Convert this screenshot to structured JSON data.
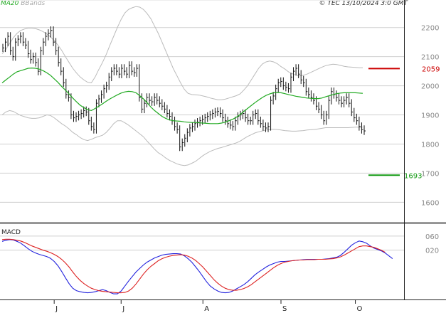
{
  "header": {
    "ma_label": "MA20",
    "bb_label": "BBands",
    "copyright": "© TEC 13/10/2024 3:0 GMT"
  },
  "colors": {
    "ma": "#22aa22",
    "bands": "#bbbbbb",
    "price": "#111111",
    "resistance": "#cc0000",
    "support": "#119911",
    "macd": "#2222dd",
    "signal": "#dd2222",
    "grid": "#cfcfcf",
    "axis_text": "#888888"
  },
  "chart_data": [
    {
      "type": "line",
      "panel": "price",
      "y_ticks": [
        1600,
        1700,
        1800,
        1900,
        2000,
        2100,
        2200
      ],
      "ylim": [
        1530,
        2275
      ],
      "x_ticks": [
        "J",
        "J",
        "A",
        "S",
        "O"
      ],
      "x_tick_bars": [
        14,
        32,
        54,
        75,
        95
      ],
      "series": [
        {
          "name": "MA20",
          "values": [
            2010,
            2020,
            2030,
            2040,
            2048,
            2052,
            2056,
            2060,
            2061,
            2060,
            2057,
            2052,
            2045,
            2036,
            2024,
            2012,
            1998,
            1985,
            1972,
            1958,
            1945,
            1933,
            1925,
            1918,
            1915,
            1922,
            1930,
            1938,
            1947,
            1955,
            1962,
            1969,
            1975,
            1979,
            1981,
            1980,
            1976,
            1966,
            1955,
            1942,
            1927,
            1915,
            1905,
            1895,
            1888,
            1883,
            1880,
            1879,
            1878,
            1876,
            1875,
            1874,
            1874,
            1873,
            1872,
            1871,
            1870,
            1870,
            1870,
            1872,
            1875,
            1880,
            1885,
            1892,
            1901,
            1912,
            1922,
            1932,
            1942,
            1951,
            1960,
            1967,
            1972,
            1976,
            1977,
            1976,
            1973,
            1970,
            1967,
            1964,
            1962,
            1960,
            1958,
            1957,
            1956,
            1956,
            1958,
            1962,
            1966,
            1970,
            1973,
            1975,
            1976,
            1976,
            1976,
            1976,
            1975,
            1974
          ]
        },
        {
          "name": "BBands upper",
          "values": [
            2110,
            2125,
            2145,
            2165,
            2180,
            2190,
            2195,
            2198,
            2198,
            2196,
            2192,
            2186,
            2178,
            2168,
            2155,
            2140,
            2122,
            2100,
            2080,
            2060,
            2044,
            2030,
            2020,
            2012,
            2010,
            2030,
            2056,
            2080,
            2108,
            2140,
            2170,
            2200,
            2228,
            2250,
            2262,
            2268,
            2272,
            2270,
            2262,
            2248,
            2230,
            2205,
            2180,
            2150,
            2120,
            2090,
            2060,
            2035,
            2010,
            1988,
            1974,
            1970,
            1969,
            1968,
            1965,
            1962,
            1958,
            1955,
            1952,
            1952,
            1954,
            1958,
            1962,
            1966,
            1972,
            1985,
            2000,
            2020,
            2040,
            2060,
            2075,
            2082,
            2085,
            2082,
            2076,
            2066,
            2058,
            2048,
            2042,
            2036,
            2034,
            2036,
            2040,
            2046,
            2052,
            2058,
            2064,
            2069,
            2072,
            2074,
            2073,
            2070,
            2067,
            2065,
            2064,
            2063,
            2062,
            2062
          ]
        },
        {
          "name": "BBands lower",
          "values": [
            1900,
            1910,
            1915,
            1912,
            1905,
            1898,
            1894,
            1890,
            1888,
            1888,
            1890,
            1895,
            1900,
            1898,
            1890,
            1880,
            1870,
            1862,
            1852,
            1840,
            1832,
            1822,
            1815,
            1812,
            1816,
            1822,
            1826,
            1830,
            1840,
            1854,
            1870,
            1880,
            1880,
            1873,
            1865,
            1855,
            1845,
            1835,
            1825,
            1810,
            1796,
            1782,
            1770,
            1762,
            1752,
            1744,
            1738,
            1732,
            1728,
            1726,
            1728,
            1734,
            1740,
            1750,
            1760,
            1768,
            1775,
            1780,
            1785,
            1788,
            1792,
            1796,
            1800,
            1804,
            1810,
            1818,
            1826,
            1832,
            1838,
            1842,
            1845,
            1848,
            1850,
            1851,
            1850,
            1848,
            1846,
            1845,
            1844,
            1844,
            1845,
            1846,
            1848,
            1849,
            1850,
            1852,
            1854,
            1856,
            1856,
            1856,
            1856,
            1856,
            1856,
            1856,
            1857,
            1858,
            1858,
            1858
          ]
        },
        {
          "name": "Price",
          "style": "hlc-bars",
          "values": [
            2130,
            2150,
            2170,
            2120,
            2100,
            2150,
            2160,
            2170,
            2150,
            2140,
            2110,
            2090,
            2100,
            2080,
            2050,
            2120,
            2150,
            2170,
            2180,
            2190,
            2150,
            2120,
            2080,
            2050,
            2010,
            1970,
            1960,
            1900,
            1890,
            1895,
            1900,
            1905,
            1915,
            1910,
            1880,
            1860,
            1850,
            1940,
            1955,
            1970,
            1990,
            2000,
            2030,
            2050,
            2060,
            2050,
            2040,
            2060,
            2050,
            2040,
            2070,
            2050,
            2045,
            2060,
            1960,
            1920,
            1940,
            1960,
            1950,
            1945,
            1960,
            1950,
            1940,
            1930,
            1920,
            1905,
            1895,
            1880,
            1860,
            1850,
            1790,
            1805,
            1820,
            1840,
            1855,
            1860,
            1870,
            1875,
            1880,
            1885,
            1890,
            1895,
            1900,
            1905,
            1910,
            1912,
            1905,
            1890,
            1880,
            1870,
            1865,
            1860,
            1880,
            1895,
            1900,
            1905,
            1890,
            1880,
            1880,
            1900,
            1905,
            1880,
            1870,
            1860,
            1855,
            1860,
            1950,
            1965,
            1990,
            2010,
            2015,
            2000,
            1995,
            1990,
            2030,
            2050,
            2060,
            2040,
            2020,
            2010,
            1980,
            1970,
            1960,
            1950,
            1930,
            1920,
            1900,
            1880,
            1900,
            1950,
            1980,
            1970,
            1960,
            1950,
            1940,
            1950,
            1960,
            1940,
            1910,
            1890,
            1880,
            1860,
            1850,
            1845
          ]
        }
      ],
      "support": {
        "value": 1693,
        "label": "1693"
      },
      "resistance": {
        "value": 2059,
        "label": "2059"
      }
    },
    {
      "type": "line",
      "panel": "indicator",
      "title": "MACD",
      "y_ticks": [
        20,
        60
      ],
      "y_tick_labels": [
        "020",
        "060"
      ],
      "ylim": [
        -120,
        90
      ],
      "series": [
        {
          "name": "MACD",
          "values": [
            45,
            48,
            50,
            49,
            45,
            40,
            32,
            24,
            17,
            12,
            8,
            5,
            2,
            -3,
            -12,
            -24,
            -40,
            -58,
            -75,
            -88,
            -95,
            -98,
            -100,
            -101,
            -100,
            -98,
            -95,
            -92,
            -95,
            -100,
            -104,
            -104,
            -96,
            -82,
            -68,
            -55,
            -42,
            -32,
            -22,
            -14,
            -8,
            -2,
            2,
            6,
            8,
            9,
            10,
            10,
            9,
            4,
            -4,
            -14,
            -27,
            -40,
            -55,
            -70,
            -82,
            -90,
            -96,
            -100,
            -101,
            -100,
            -96,
            -90,
            -84,
            -78,
            -70,
            -60,
            -50,
            -42,
            -35,
            -28,
            -22,
            -18,
            -14,
            -12,
            -12,
            -11,
            -10,
            -9,
            -8,
            -7,
            -6,
            -6,
            -6,
            -6,
            -6,
            -5,
            -4,
            -2,
            0,
            5,
            14,
            24,
            34,
            41,
            46,
            44,
            40,
            32,
            26,
            22,
            18,
            12,
            4,
            -4
          ]
        },
        {
          "name": "Signal",
          "values": [
            50,
            51,
            51,
            50,
            48,
            46,
            42,
            37,
            32,
            28,
            24,
            20,
            17,
            13,
            8,
            2,
            -6,
            -16,
            -28,
            -42,
            -55,
            -66,
            -75,
            -82,
            -88,
            -92,
            -95,
            -97,
            -98,
            -99,
            -100,
            -101,
            -101,
            -100,
            -96,
            -88,
            -76,
            -62,
            -48,
            -36,
            -26,
            -18,
            -10,
            -4,
            0,
            3,
            5,
            6,
            7,
            6,
            3,
            -2,
            -9,
            -18,
            -28,
            -40,
            -52,
            -64,
            -74,
            -82,
            -88,
            -92,
            -94,
            -94,
            -92,
            -89,
            -84,
            -78,
            -70,
            -62,
            -54,
            -46,
            -38,
            -30,
            -23,
            -18,
            -14,
            -12,
            -10,
            -9,
            -8,
            -8,
            -7,
            -7,
            -7,
            -6,
            -6,
            -6,
            -5,
            -4,
            -2,
            1,
            6,
            12,
            18,
            24,
            30,
            32,
            32,
            30,
            28,
            24,
            20,
            14
          ]
        }
      ]
    }
  ]
}
